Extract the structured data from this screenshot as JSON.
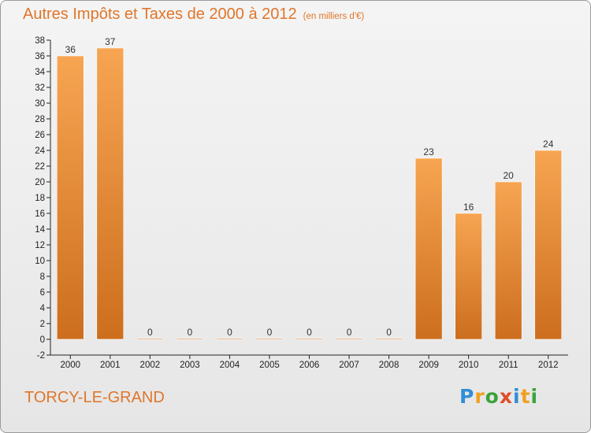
{
  "header": {
    "title": "Autres Impôts et Taxes de 2000 à 2012",
    "subtitle": "(en milliers d'€)"
  },
  "footer": {
    "location": "TORCY-LE-GRAND",
    "brand": [
      "P",
      "r",
      "o",
      "x",
      "i",
      "t",
      "i"
    ]
  },
  "colors": {
    "bar_light": "#f7a552",
    "bar_dark": "#cc6e1e",
    "title": "#e0762a"
  },
  "chart_data": {
    "type": "bar",
    "title": "Autres Impôts et Taxes de 2000 à 2012",
    "subtitle": "(en milliers d'€)",
    "categories": [
      "2000",
      "2001",
      "2002",
      "2003",
      "2004",
      "2005",
      "2006",
      "2007",
      "2008",
      "2009",
      "2010",
      "2011",
      "2012"
    ],
    "values": [
      36,
      37,
      0,
      0,
      0,
      0,
      0,
      0,
      0,
      23,
      16,
      20,
      24
    ],
    "ylim": [
      -2,
      38
    ],
    "yticks": [
      -2,
      0,
      2,
      4,
      6,
      8,
      10,
      12,
      14,
      16,
      18,
      20,
      22,
      24,
      26,
      28,
      30,
      32,
      34,
      36,
      38
    ],
    "grid": false,
    "legend": "none"
  }
}
